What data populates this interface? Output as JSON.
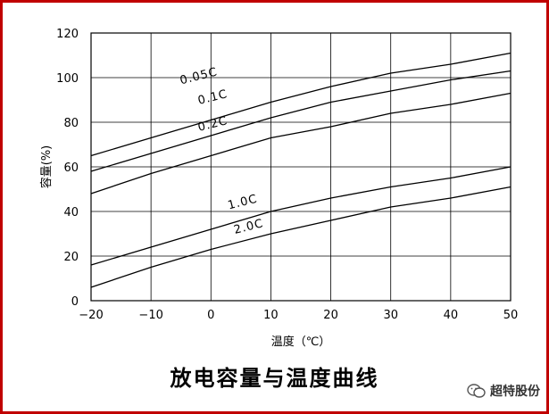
{
  "chart_data": {
    "type": "line",
    "title": "放电容量与温度曲线",
    "xlabel": "温度（℃）",
    "ylabel": "容量(%)",
    "xlim": [
      -20,
      50
    ],
    "ylim": [
      0,
      120
    ],
    "xticks": [
      "-20",
      "-10",
      "0",
      "10",
      "20",
      "30",
      "40",
      "50"
    ],
    "yticks": [
      "0",
      "20",
      "40",
      "60",
      "80",
      "100",
      "120"
    ],
    "grid": true,
    "series": [
      {
        "name": "0.05C",
        "x": [
          -20,
          -10,
          0,
          10,
          20,
          30,
          40,
          50
        ],
        "y": [
          65,
          73,
          81,
          89,
          96,
          102,
          106,
          111
        ]
      },
      {
        "name": "0.1C",
        "x": [
          -20,
          -10,
          0,
          10,
          20,
          30,
          40,
          50
        ],
        "y": [
          58,
          66,
          74,
          82,
          89,
          94,
          99,
          103
        ]
      },
      {
        "name": "0.2C",
        "x": [
          -20,
          -10,
          0,
          10,
          20,
          30,
          40,
          50
        ],
        "y": [
          48,
          57,
          65,
          73,
          78,
          84,
          88,
          93
        ]
      },
      {
        "name": "1.0C",
        "x": [
          -20,
          -10,
          0,
          10,
          20,
          30,
          40,
          50
        ],
        "y": [
          16,
          24,
          32,
          40,
          46,
          51,
          55,
          60
        ]
      },
      {
        "name": "2.0C",
        "x": [
          -20,
          -10,
          0,
          10,
          20,
          30,
          40,
          50
        ],
        "y": [
          6,
          15,
          23,
          30,
          36,
          42,
          46,
          51
        ]
      }
    ]
  },
  "brand": {
    "name": "超特股份",
    "icon": "wechat-icon"
  }
}
